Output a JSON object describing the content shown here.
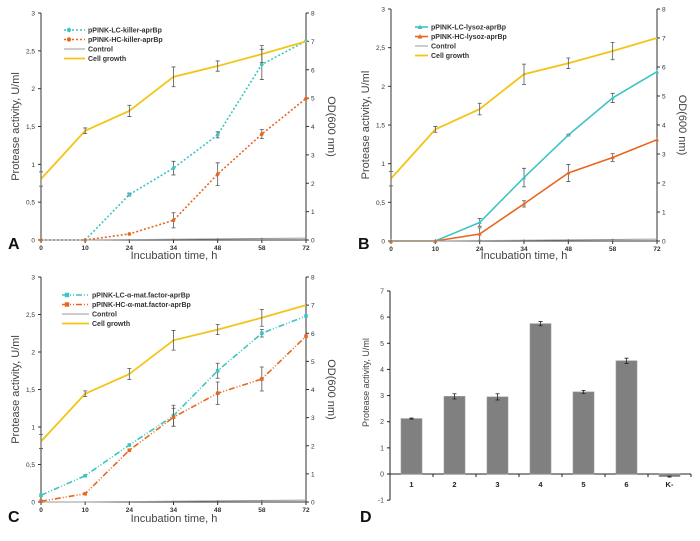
{
  "colors": {
    "lc": "#3ec4c4",
    "hc": "#e8661e",
    "control": "#9a9a9a",
    "growth": "#f2c516",
    "bar": "#808080",
    "axis": "#333333"
  },
  "chart_data": [
    {
      "panel": "A",
      "type": "line",
      "categories": [
        "0",
        "10",
        "24",
        "34",
        "48",
        "58",
        "72"
      ],
      "xlabel": "Incubation time, h",
      "ylabel": "Protease activity, U/ml",
      "y2label": "OD(600 nm)",
      "ylim": [
        0,
        3
      ],
      "y2lim": [
        0,
        8
      ],
      "yticks": [
        "0",
        "0,5",
        "1",
        "1,5",
        "2",
        "2,5",
        "3"
      ],
      "y2ticks": [
        "0",
        "1",
        "2",
        "3",
        "4",
        "5",
        "6",
        "7",
        "8"
      ],
      "legend": "top-left",
      "line_style": "dotted",
      "marker": "circle",
      "series": [
        {
          "name": "pPINK-LC-killer-aprBp",
          "color_key": "lc",
          "axis": "left",
          "values": [
            0,
            0,
            0.6,
            0.95,
            1.39,
            2.32,
            2.63
          ],
          "err": [
            0,
            0,
            0.02,
            0.09,
            0.04,
            0.2,
            0
          ]
        },
        {
          "name": "pPINK-HC-killer-aprBp",
          "color_key": "hc",
          "axis": "left",
          "values": [
            0,
            0,
            0.08,
            0.26,
            0.87,
            1.4,
            1.87
          ],
          "err": [
            0,
            0,
            0,
            0.1,
            0.15,
            0.06,
            0
          ]
        },
        {
          "name": "Control",
          "color_key": "control",
          "axis": "left",
          "values": [
            0,
            0,
            0.005,
            0.01,
            0.015,
            0.02,
            0.025
          ],
          "err": [
            0,
            0,
            0,
            0,
            0,
            0,
            0
          ]
        },
        {
          "name": "Cell growth",
          "color_key": "growth",
          "axis": "right",
          "values": [
            2.15,
            3.85,
            4.55,
            5.75,
            6.13,
            6.55,
            7.0
          ],
          "err": [
            0.25,
            0.1,
            0.2,
            0.35,
            0.18,
            0.3,
            0
          ]
        }
      ]
    },
    {
      "panel": "B",
      "type": "line",
      "categories": [
        "0",
        "10",
        "24",
        "34",
        "48",
        "58",
        "72"
      ],
      "xlabel": "Incubation time, h",
      "ylabel": "Protease activity, U/ml",
      "y2label": "OD(600 nm)",
      "ylim": [
        0,
        3
      ],
      "y2lim": [
        0,
        8
      ],
      "yticks": [
        "0",
        "0,5",
        "1",
        "1,5",
        "2",
        "2,5",
        "3"
      ],
      "y2ticks": [
        "0",
        "1",
        "2",
        "3",
        "4",
        "5",
        "6",
        "7",
        "8"
      ],
      "legend": "top-left",
      "line_style": "solid",
      "marker": "triangle",
      "series": [
        {
          "name": "pPINK-LC-lysoz-aprBp",
          "color_key": "lc",
          "axis": "left",
          "values": [
            0,
            0,
            0.24,
            0.82,
            1.37,
            1.85,
            2.19
          ],
          "err": [
            0,
            0,
            0.05,
            0.12,
            0.01,
            0.06,
            0
          ]
        },
        {
          "name": "pPINK-HC-lysoz-aprBp",
          "color_key": "hc",
          "axis": "left",
          "values": [
            0,
            0,
            0.09,
            0.48,
            0.88,
            1.08,
            1.31
          ],
          "err": [
            0,
            0,
            0.08,
            0.04,
            0.11,
            0.05,
            0
          ]
        },
        {
          "name": "Control",
          "color_key": "control",
          "axis": "left",
          "values": [
            0,
            0,
            0.005,
            0.01,
            0.015,
            0.02,
            0.025
          ],
          "err": [
            0,
            0,
            0,
            0,
            0,
            0,
            0
          ]
        },
        {
          "name": "Cell growth",
          "color_key": "growth",
          "axis": "right",
          "values": [
            2.15,
            3.85,
            4.55,
            5.75,
            6.13,
            6.55,
            7.0
          ],
          "err": [
            0.25,
            0.1,
            0.2,
            0.35,
            0.18,
            0.3,
            0
          ]
        }
      ]
    },
    {
      "panel": "C",
      "type": "line",
      "categories": [
        "0",
        "10",
        "24",
        "34",
        "48",
        "58",
        "72"
      ],
      "xlabel": "Incubation time, h",
      "ylabel": "Protease activity, U/ml",
      "y2label": "OD(600 nm)",
      "ylim": [
        0,
        3
      ],
      "y2lim": [
        0,
        8
      ],
      "yticks": [
        "0",
        "0,5",
        "1",
        "1,5",
        "2",
        "2,5",
        "3"
      ],
      "y2ticks": [
        "0",
        "1",
        "2",
        "3",
        "4",
        "5",
        "6",
        "7",
        "8"
      ],
      "legend": "top-left",
      "line_style": "dash-dot",
      "marker": "square",
      "series": [
        {
          "name": "pPINK-LC-α-mat.factor-aprBp",
          "color_key": "lc",
          "axis": "left",
          "values": [
            0.09,
            0.35,
            0.76,
            1.15,
            1.75,
            2.25,
            2.48
          ],
          "err": [
            0,
            0,
            0,
            0.14,
            0.1,
            0.05,
            0
          ]
        },
        {
          "name": "pPINK-HC-α-mat.factor-aprBp",
          "color_key": "hc",
          "axis": "left",
          "values": [
            0.01,
            0.11,
            0.69,
            1.13,
            1.45,
            1.64,
            2.21
          ],
          "err": [
            0,
            0,
            0,
            0.12,
            0.15,
            0.16,
            0
          ]
        },
        {
          "name": "Control",
          "color_key": "control",
          "axis": "left",
          "values": [
            0,
            0,
            0.005,
            0.01,
            0.015,
            0.02,
            0.025
          ],
          "err": [
            0,
            0,
            0,
            0,
            0,
            0,
            0
          ]
        },
        {
          "name": "Cell growth",
          "color_key": "growth",
          "axis": "right",
          "values": [
            2.15,
            3.85,
            4.55,
            5.75,
            6.13,
            6.55,
            7.0
          ],
          "err": [
            0.25,
            0.1,
            0.2,
            0.35,
            0.18,
            0.3,
            0
          ]
        }
      ]
    },
    {
      "panel": "D",
      "type": "bar",
      "categories": [
        "1",
        "2",
        "3",
        "4",
        "5",
        "6",
        "K-"
      ],
      "values": [
        2.12,
        2.97,
        2.95,
        5.75,
        3.14,
        4.33,
        -0.1
      ],
      "err": [
        0.02,
        0.1,
        0.12,
        0.08,
        0.06,
        0.1,
        0.02
      ],
      "ylabel": "Protease activity, U/ml",
      "xlabel": "",
      "ylim": [
        -1,
        7
      ],
      "yticks": [
        "-1",
        "0",
        "1",
        "2",
        "3",
        "4",
        "5",
        "6",
        "7"
      ]
    }
  ]
}
